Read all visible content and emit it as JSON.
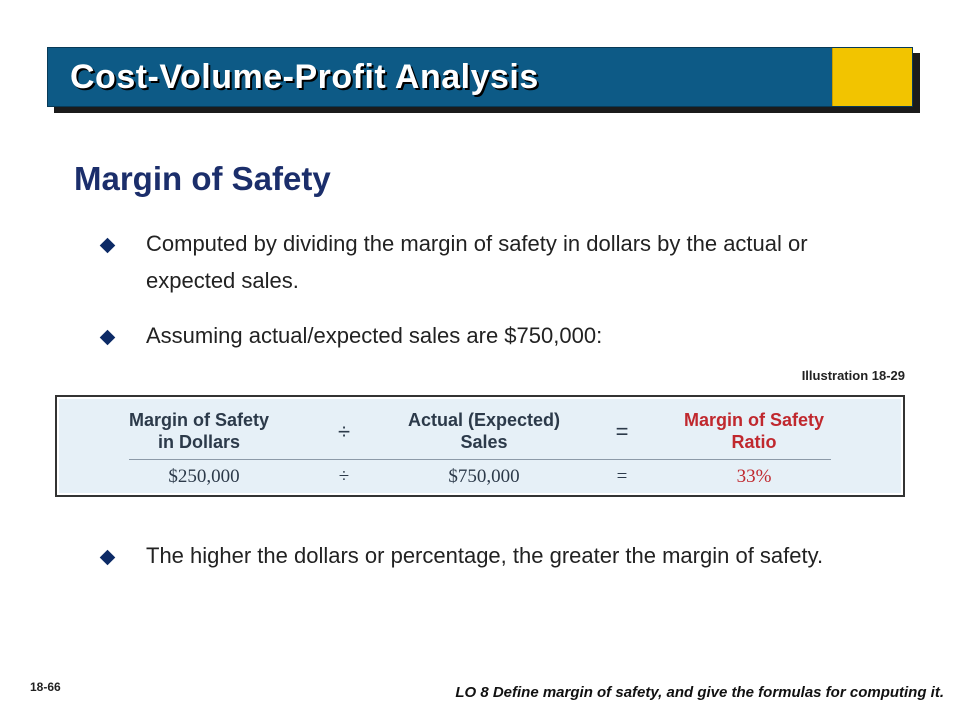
{
  "header": {
    "title": "Cost-Volume-Profit Analysis"
  },
  "section": {
    "title": "Margin of Safety"
  },
  "bullets": [
    {
      "text": "Computed by dividing the margin of safety in dollars by the actual or expected sales."
    },
    {
      "text": "Assuming actual/expected sales are $750,000:"
    },
    {
      "text": "The higher the dollars or percentage, the greater the margin of safety."
    }
  ],
  "illustration": {
    "label": "Illustration 18-29",
    "formula": {
      "term1_line1": "Margin of Safety",
      "term1_line2": "in Dollars",
      "op1": "÷",
      "term2_line1": "Actual (Expected)",
      "term2_line2": "Sales",
      "op2": "=",
      "result_line1": "Margin of Safety",
      "result_line2": "Ratio"
    },
    "values": {
      "v1": "$250,000",
      "op1": "÷",
      "v2": "$750,000",
      "op2": "=",
      "result": "33%"
    }
  },
  "footer": {
    "slide_number": "18-66",
    "learning_objective": "LO 8  Define margin of safety, and give the formulas for computing it."
  },
  "colors": {
    "title_bar": "#0d5a86",
    "title_accent": "#f2c400",
    "subtitle": "#1b2e6b",
    "formula_bg": "#e6f0f7",
    "result_red": "#c0282e"
  }
}
